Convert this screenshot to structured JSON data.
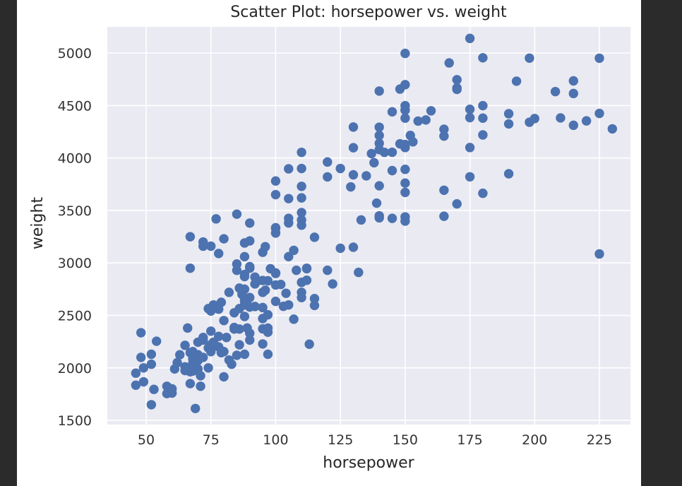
{
  "chart_data": {
    "type": "scatter",
    "title": "Scatter Plot: horsepower vs. weight",
    "xlabel": "horsepower",
    "ylabel": "weight",
    "xlim": [
      35,
      237
    ],
    "ylim": [
      1460,
      5250
    ],
    "xticks": [
      50,
      75,
      100,
      125,
      150,
      175,
      200,
      225
    ],
    "yticks": [
      1500,
      2000,
      2500,
      3000,
      3500,
      4000,
      4500,
      5000
    ],
    "grid": true,
    "colors": {
      "background": "#eaeaf2",
      "marker": "#4c72b0",
      "grid": "#ffffff"
    },
    "points": [
      [
        46,
        1835
      ],
      [
        46,
        1950
      ],
      [
        48,
        2335
      ],
      [
        48,
        2100
      ],
      [
        49,
        1867
      ],
      [
        49,
        2000
      ],
      [
        52,
        1649
      ],
      [
        52,
        2130
      ],
      [
        52,
        2035
      ],
      [
        53,
        1795
      ],
      [
        54,
        2254
      ],
      [
        58,
        1755
      ],
      [
        58,
        1825
      ],
      [
        60,
        1800
      ],
      [
        60,
        1760
      ],
      [
        61,
        1990
      ],
      [
        62,
        2050
      ],
      [
        63,
        2125
      ],
      [
        65,
        1975
      ],
      [
        65,
        2010
      ],
      [
        65,
        2215
      ],
      [
        66,
        2380
      ],
      [
        66,
        1985
      ],
      [
        67,
        1850
      ],
      [
        67,
        1963
      ],
      [
        67,
        2145
      ],
      [
        67,
        3250
      ],
      [
        67,
        2950
      ],
      [
        68,
        1970
      ],
      [
        68,
        2045
      ],
      [
        68,
        2085
      ],
      [
        68,
        2155
      ],
      [
        69,
        1613
      ],
      [
        70,
        1990
      ],
      [
        70,
        2070
      ],
      [
        70,
        2125
      ],
      [
        70,
        2245
      ],
      [
        71,
        1825
      ],
      [
        71,
        1925
      ],
      [
        72,
        2100
      ],
      [
        72,
        2265
      ],
      [
        72,
        2290
      ],
      [
        72,
        3200
      ],
      [
        72,
        3160
      ],
      [
        74,
        2000
      ],
      [
        74,
        2190
      ],
      [
        74,
        2565
      ],
      [
        75,
        2155
      ],
      [
        75,
        2220
      ],
      [
        75,
        2350
      ],
      [
        75,
        2542
      ],
      [
        75,
        3160
      ],
      [
        76,
        2600
      ],
      [
        76,
        2245
      ],
      [
        77,
        3420
      ],
      [
        78,
        2200
      ],
      [
        78,
        2300
      ],
      [
        78,
        2560
      ],
      [
        78,
        3090
      ],
      [
        79,
        2625
      ],
      [
        79,
        2145
      ],
      [
        80,
        1915
      ],
      [
        80,
        2155
      ],
      [
        80,
        2451
      ],
      [
        80,
        3230
      ],
      [
        81,
        2290
      ],
      [
        82,
        2720
      ],
      [
        83,
        2035
      ],
      [
        84,
        2385
      ],
      [
        84,
        2525
      ],
      [
        85,
        2990
      ],
      [
        85,
        3465
      ],
      [
        86,
        2220
      ],
      [
        86,
        2565
      ],
      [
        87,
        2700
      ],
      [
        88,
        2600
      ],
      [
        88,
        2890
      ],
      [
        88,
        2640
      ],
      [
        88,
        2130
      ],
      [
        88,
        3060
      ],
      [
        88,
        2870
      ],
      [
        89,
        2380
      ],
      [
        89,
        2650
      ],
      [
        90,
        2330
      ],
      [
        90,
        2965
      ],
      [
        90,
        3210
      ],
      [
        90,
        2580
      ],
      [
        90,
        3380
      ],
      [
        90,
        2265
      ],
      [
        92,
        2865
      ],
      [
        92,
        2800
      ],
      [
        93,
        2830
      ],
      [
        95,
        2720
      ],
      [
        95,
        3102
      ],
      [
        95,
        2228
      ],
      [
        95,
        2372
      ],
      [
        95,
        2833
      ],
      [
        96,
        3155
      ],
      [
        97,
        2130
      ],
      [
        97,
        2340
      ],
      [
        97,
        2379
      ],
      [
        97,
        2830
      ],
      [
        98,
        2945
      ],
      [
        100,
        2790
      ],
      [
        100,
        3329
      ],
      [
        100,
        2634
      ],
      [
        100,
        3285
      ],
      [
        100,
        3336
      ],
      [
        100,
        3651
      ],
      [
        100,
        3781
      ],
      [
        100,
        2905
      ],
      [
        102,
        2795
      ],
      [
        103,
        2587
      ],
      [
        104,
        2711
      ],
      [
        105,
        3060
      ],
      [
        105,
        3425
      ],
      [
        105,
        3897
      ],
      [
        105,
        3613
      ],
      [
        105,
        3381
      ],
      [
        107,
        2464
      ],
      [
        107,
        3120
      ],
      [
        108,
        2930
      ],
      [
        110,
        2815
      ],
      [
        110,
        3620
      ],
      [
        110,
        3480
      ],
      [
        110,
        3410
      ],
      [
        110,
        3360
      ],
      [
        110,
        2720
      ],
      [
        110,
        3730
      ],
      [
        110,
        3900
      ],
      [
        110,
        4054
      ],
      [
        112,
        2945
      ],
      [
        112,
        2835
      ],
      [
        113,
        2226
      ],
      [
        115,
        2660
      ],
      [
        115,
        2595
      ],
      [
        115,
        3245
      ],
      [
        120,
        2930
      ],
      [
        120,
        3820
      ],
      [
        120,
        3962
      ],
      [
        122,
        2800
      ],
      [
        125,
        3900
      ],
      [
        125,
        3140
      ],
      [
        129,
        3725
      ],
      [
        130,
        3840
      ],
      [
        130,
        4098
      ],
      [
        130,
        4295
      ],
      [
        130,
        3150
      ],
      [
        132,
        2910
      ],
      [
        133,
        3410
      ],
      [
        135,
        3830
      ],
      [
        137,
        4042
      ],
      [
        138,
        3955
      ],
      [
        139,
        3570
      ],
      [
        140,
        3430
      ],
      [
        140,
        4215
      ],
      [
        140,
        4080
      ],
      [
        140,
        4140
      ],
      [
        140,
        3735
      ],
      [
        140,
        4294
      ],
      [
        140,
        4638
      ],
      [
        140,
        3449
      ],
      [
        142,
        4054
      ],
      [
        145,
        4055
      ],
      [
        145,
        4440
      ],
      [
        145,
        3880
      ],
      [
        145,
        3425
      ],
      [
        148,
        4657
      ],
      [
        148,
        4135
      ],
      [
        150,
        3672
      ],
      [
        150,
        3761
      ],
      [
        150,
        4380
      ],
      [
        150,
        4699
      ],
      [
        150,
        3439
      ],
      [
        150,
        3399
      ],
      [
        150,
        4100
      ],
      [
        150,
        3892
      ],
      [
        150,
        4456
      ],
      [
        150,
        4129
      ],
      [
        150,
        4457
      ],
      [
        150,
        4499
      ],
      [
        150,
        4997
      ],
      [
        152,
        4215
      ],
      [
        153,
        4154
      ],
      [
        155,
        4352
      ],
      [
        158,
        4363
      ],
      [
        160,
        4450
      ],
      [
        165,
        4209
      ],
      [
        165,
        3693
      ],
      [
        165,
        4274
      ],
      [
        165,
        3445
      ],
      [
        167,
        4906
      ],
      [
        170,
        4746
      ],
      [
        170,
        3563
      ],
      [
        170,
        4654
      ],
      [
        170,
        4668
      ],
      [
        175,
        4464
      ],
      [
        175,
        4385
      ],
      [
        175,
        3821
      ],
      [
        175,
        4100
      ],
      [
        175,
        5140
      ],
      [
        180,
        4499
      ],
      [
        180,
        4380
      ],
      [
        180,
        3664
      ],
      [
        180,
        4955
      ],
      [
        180,
        4220
      ],
      [
        190,
        4325
      ],
      [
        190,
        4422
      ],
      [
        190,
        3850
      ],
      [
        193,
        4732
      ],
      [
        198,
        4952
      ],
      [
        198,
        4341
      ],
      [
        200,
        4376
      ],
      [
        208,
        4633
      ],
      [
        210,
        4382
      ],
      [
        215,
        4735
      ],
      [
        215,
        4615
      ],
      [
        215,
        4312
      ],
      [
        220,
        4354
      ],
      [
        225,
        4951
      ],
      [
        225,
        3086
      ],
      [
        225,
        4425
      ],
      [
        230,
        4278
      ],
      [
        82,
        2075
      ],
      [
        84,
        2370
      ],
      [
        85,
        2120
      ],
      [
        86,
        2370
      ],
      [
        88,
        2490
      ],
      [
        88,
        3190
      ],
      [
        90,
        2670
      ],
      [
        90,
        2950
      ],
      [
        92,
        2585
      ],
      [
        95,
        2470
      ],
      [
        95,
        2575
      ],
      [
        96,
        2740
      ],
      [
        97,
        2506
      ],
      [
        100,
        2900
      ],
      [
        105,
        2600
      ],
      [
        110,
        2670
      ],
      [
        112,
        2950
      ],
      [
        88,
        2750
      ],
      [
        86,
        2760
      ],
      [
        85,
        2930
      ]
    ]
  }
}
